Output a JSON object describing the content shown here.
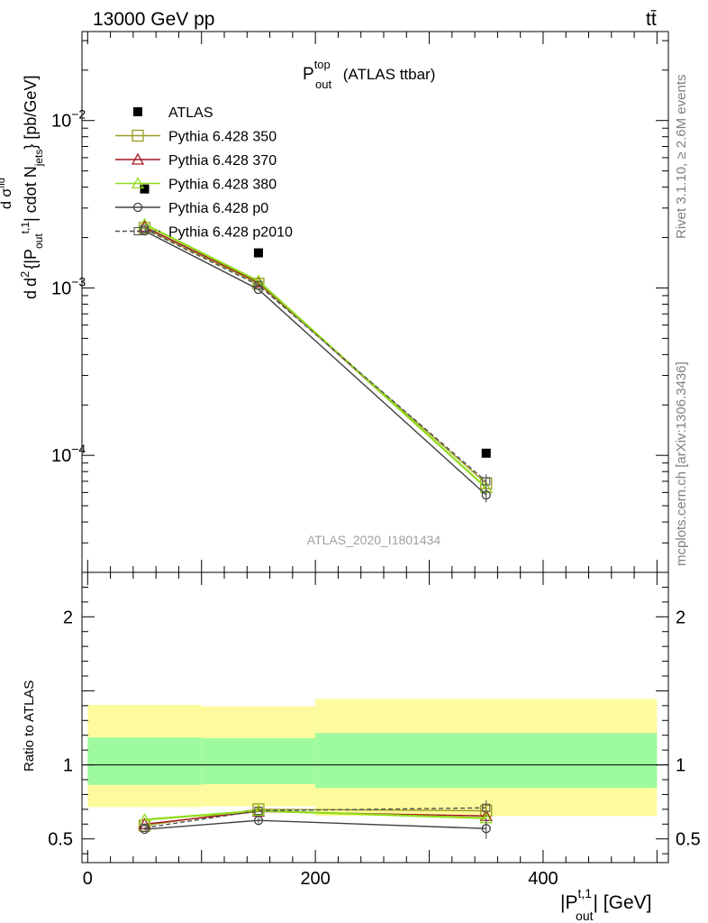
{
  "header": {
    "left_label": "13000 GeV pp",
    "right_label": "tt̄",
    "side_text_top": "Rivet 3.1.10, ≥ 2.6M events",
    "side_text_bottom": "mcplots.cern.ch [arXiv:1306.3436]",
    "watermark": "ATLAS_2020_I1801434"
  },
  "title": {
    "main": "P",
    "sup": "top",
    "sub": "out",
    "suffix": " (ATLAS ttbar)"
  },
  "ylabel_main": "d σ^fid / d^2 {|P_out^{t,1}| cdot N_jets} [pb/GeV]",
  "ylabel_ratio": "Ratio to ATLAS",
  "xlabel": "|P_out^{t,1}| [GeV]",
  "colors": {
    "ATLAS": "#000000",
    "p350": "#9b9a23",
    "p370": "#a51520",
    "p380": "#8fdc1a",
    "p0": "#404040",
    "p2010": "#505050",
    "band_inner": "#9efa9e",
    "band_outer": "#fdfb9e"
  },
  "chart_data": [
    {
      "type": "line",
      "name": "main",
      "yscale": "log",
      "xlim": [
        -5,
        510
      ],
      "ylim": [
        2e-05,
        0.034
      ],
      "x": [
        50,
        150,
        350
      ],
      "x_bins": [
        [
          0,
          100
        ],
        [
          100,
          200
        ],
        [
          200,
          500
        ]
      ],
      "yticks": [
        {
          "value": 0.0001,
          "label": "10",
          "exp": "−4"
        },
        {
          "value": 0.001,
          "label": "10",
          "exp": "−3"
        },
        {
          "value": 0.01,
          "label": "10",
          "exp": "−2"
        }
      ],
      "series": [
        {
          "name": "ATLAS",
          "key": "ATLAS",
          "marker": "square-filled",
          "values": [
            0.0039,
            0.00162,
            0.000103
          ]
        },
        {
          "name": "Pythia 6.428 350",
          "key": "p350",
          "marker": "square-open",
          "values": [
            0.00228,
            0.00106,
            6.8e-05
          ]
        },
        {
          "name": "Pythia 6.428 370",
          "key": "p370",
          "marker": "triangle-open",
          "values": [
            0.00232,
            0.00108,
            6.4e-05
          ]
        },
        {
          "name": "Pythia 6.428 380",
          "key": "p380",
          "marker": "triangle-open",
          "values": [
            0.0024,
            0.0011,
            6.4e-05
          ]
        },
        {
          "name": "Pythia 6.428 p0",
          "key": "p0",
          "marker": "circle-open",
          "values": [
            0.00219,
            0.00098,
            5.8e-05
          ]
        },
        {
          "name": "Pythia 6.428 p2010",
          "key": "p2010",
          "marker": "square-small",
          "dashed": true,
          "values": [
            0.00225,
            0.00104,
            7e-05
          ]
        }
      ]
    },
    {
      "type": "line",
      "name": "ratio",
      "xlim": [
        -5,
        510
      ],
      "ylim": [
        0.34,
        2.3
      ],
      "yticks": [
        0.5,
        1,
        2
      ],
      "xticks": [
        0,
        200,
        400
      ],
      "x": [
        50,
        150,
        350
      ],
      "band_inner": [
        [
          0.865,
          1.185
        ],
        [
          0.87,
          1.18
        ],
        [
          0.845,
          1.215
        ]
      ],
      "band_outer": [
        [
          0.715,
          1.405
        ],
        [
          0.72,
          1.395
        ],
        [
          0.655,
          1.445
        ]
      ],
      "series": [
        {
          "name": "Pythia 6.428 350",
          "key": "p350",
          "values": [
            0.59,
            0.7,
            0.69
          ]
        },
        {
          "name": "Pythia 6.428 370",
          "key": "p370",
          "values": [
            0.6,
            0.685,
            0.655
          ]
        },
        {
          "name": "Pythia 6.428 380",
          "key": "p380",
          "values": [
            0.63,
            0.69,
            0.64
          ]
        },
        {
          "name": "Pythia 6.428 p0",
          "key": "p0",
          "values": [
            0.565,
            0.625,
            0.57
          ]
        },
        {
          "name": "Pythia 6.428 p2010",
          "key": "p2010",
          "values": [
            0.575,
            0.69,
            0.71
          ]
        }
      ]
    }
  ]
}
